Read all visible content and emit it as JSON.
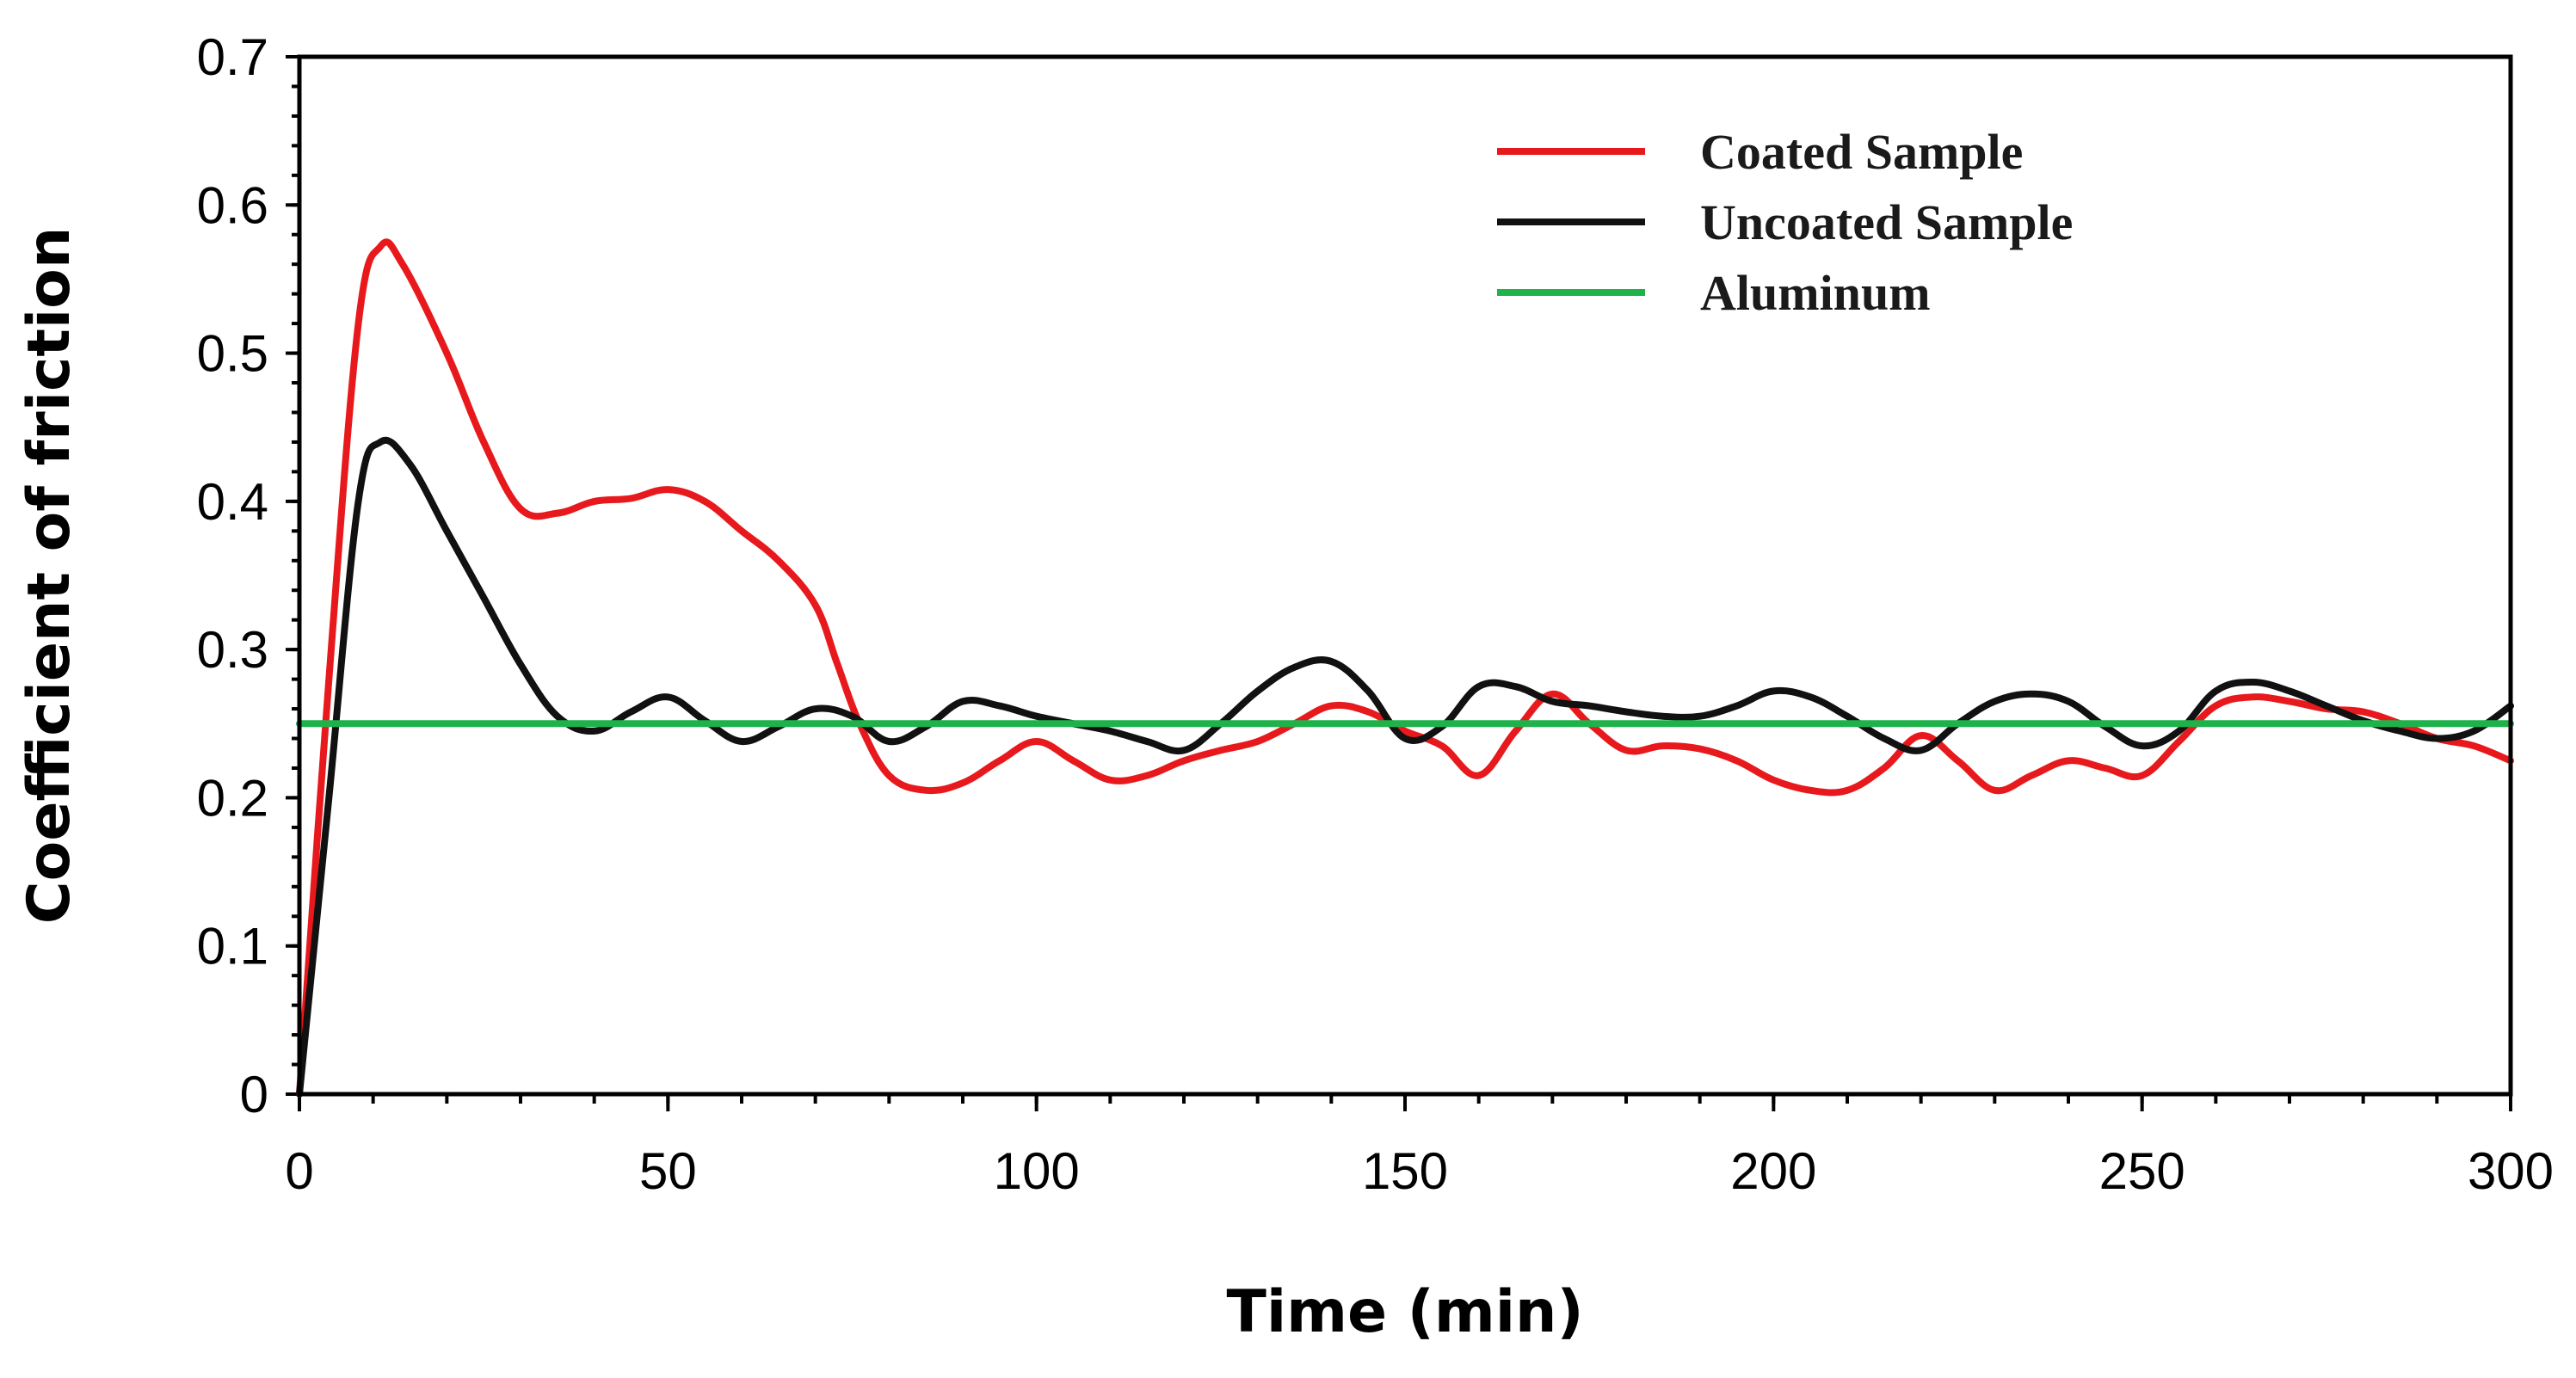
{
  "chart_data": {
    "type": "line",
    "title": "",
    "xlabel": "Time (min)",
    "ylabel": "Coefficient of friction",
    "xlim": [
      0,
      300
    ],
    "ylim": [
      0,
      0.7
    ],
    "grid": false,
    "legend_position": "top-right",
    "x_ticks": [
      0,
      50,
      100,
      150,
      200,
      250,
      300
    ],
    "x_tick_labels": [
      "0",
      "50",
      "100",
      "150",
      "200",
      "250",
      "300"
    ],
    "y_ticks": [
      0,
      0.1,
      0.2,
      0.3,
      0.4,
      0.5,
      0.6,
      0.7
    ],
    "y_tick_labels": [
      "0",
      "0.1",
      "0.2",
      "0.3",
      "0.4",
      "0.5",
      "0.6",
      "0.7"
    ],
    "series": [
      {
        "name": "Coated Sample",
        "color": "#e8191c",
        "x": [
          0,
          4,
          8,
          11,
          14,
          20,
          25,
          30,
          35,
          40,
          45,
          50,
          55,
          60,
          65,
          70,
          73,
          76,
          80,
          85,
          90,
          95,
          100,
          105,
          110,
          115,
          120,
          125,
          130,
          135,
          140,
          145,
          150,
          155,
          160,
          165,
          170,
          175,
          180,
          185,
          190,
          195,
          200,
          205,
          210,
          215,
          220,
          225,
          230,
          235,
          240,
          245,
          250,
          255,
          260,
          265,
          270,
          275,
          280,
          285,
          290,
          295,
          300
        ],
        "y": [
          0.0,
          0.28,
          0.52,
          0.572,
          0.56,
          0.5,
          0.44,
          0.395,
          0.392,
          0.4,
          0.402,
          0.408,
          0.4,
          0.38,
          0.36,
          0.33,
          0.29,
          0.25,
          0.215,
          0.205,
          0.21,
          0.225,
          0.238,
          0.225,
          0.212,
          0.215,
          0.225,
          0.232,
          0.238,
          0.25,
          0.262,
          0.258,
          0.245,
          0.235,
          0.215,
          0.245,
          0.27,
          0.25,
          0.232,
          0.235,
          0.233,
          0.225,
          0.212,
          0.205,
          0.205,
          0.22,
          0.242,
          0.225,
          0.205,
          0.215,
          0.225,
          0.22,
          0.215,
          0.238,
          0.262,
          0.268,
          0.265,
          0.26,
          0.258,
          0.25,
          0.24,
          0.235,
          0.225
        ]
      },
      {
        "name": "Uncoated Sample",
        "color": "#111111",
        "x": [
          0,
          4,
          8,
          11,
          15,
          20,
          25,
          30,
          35,
          40,
          45,
          50,
          55,
          60,
          65,
          70,
          75,
          80,
          85,
          90,
          95,
          100,
          105,
          110,
          115,
          120,
          125,
          130,
          135,
          140,
          145,
          150,
          155,
          160,
          165,
          170,
          175,
          180,
          185,
          190,
          195,
          200,
          205,
          210,
          215,
          220,
          225,
          230,
          235,
          240,
          245,
          250,
          255,
          260,
          265,
          270,
          275,
          280,
          285,
          290,
          295,
          300
        ],
        "y": [
          0.0,
          0.2,
          0.4,
          0.44,
          0.425,
          0.38,
          0.335,
          0.29,
          0.255,
          0.245,
          0.258,
          0.268,
          0.252,
          0.238,
          0.248,
          0.26,
          0.255,
          0.238,
          0.248,
          0.265,
          0.262,
          0.255,
          0.25,
          0.245,
          0.238,
          0.232,
          0.25,
          0.272,
          0.288,
          0.292,
          0.272,
          0.24,
          0.248,
          0.275,
          0.275,
          0.265,
          0.262,
          0.258,
          0.255,
          0.255,
          0.262,
          0.272,
          0.268,
          0.255,
          0.24,
          0.232,
          0.25,
          0.265,
          0.27,
          0.265,
          0.248,
          0.235,
          0.245,
          0.272,
          0.278,
          0.272,
          0.262,
          0.252,
          0.245,
          0.24,
          0.245,
          0.262
        ]
      },
      {
        "name": "Aluminum",
        "color": "#1fb24a",
        "x": [
          0,
          300
        ],
        "y": [
          0.25,
          0.25
        ]
      }
    ]
  }
}
